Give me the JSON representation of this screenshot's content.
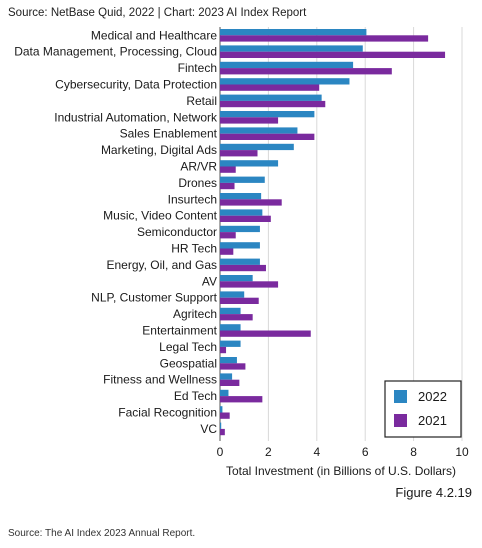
{
  "header": {
    "source_line": "Source: NetBase Quid, 2022 | Chart: 2023 AI Index Report"
  },
  "figure_label": "Figure 4.2.19",
  "footer": {
    "source": "Source: The AI Index 2023 Annual Report."
  },
  "colors": {
    "series_2022": "#2b86c2",
    "series_2021": "#7a2a9e",
    "grid": "#d9d9d9",
    "axis": "#555555"
  },
  "chart_data": {
    "type": "bar",
    "orientation": "horizontal",
    "xlabel": "Total Investment (in Billions of U.S. Dollars)",
    "ylabel": "",
    "xlim": [
      0,
      10
    ],
    "xticks": [
      0,
      2,
      4,
      6,
      8,
      10
    ],
    "grid": true,
    "legend_position": "bottom-right",
    "categories": [
      "Medical and Healthcare",
      "Data Management, Processing, Cloud",
      "Fintech",
      "Cybersecurity, Data Protection",
      "Retail",
      "Industrial Automation, Network",
      "Sales Enablement",
      "Marketing, Digital Ads",
      "AR/VR",
      "Drones",
      "Insurtech",
      "Music, Video Content",
      "Semiconductor",
      "HR Tech",
      "Energy, Oil, and Gas",
      "AV",
      "NLP, Customer Support",
      "Agritech",
      "Entertainment",
      "Legal Tech",
      "Geospatial",
      "Fitness and Wellness",
      "Ed Tech",
      "Facial Recognition",
      "VC"
    ],
    "series": [
      {
        "name": "2022",
        "values": [
          6.05,
          5.9,
          5.5,
          5.35,
          4.2,
          3.9,
          3.2,
          3.05,
          2.4,
          1.85,
          1.7,
          1.75,
          1.65,
          1.65,
          1.65,
          1.35,
          1.0,
          0.85,
          0.85,
          0.85,
          0.7,
          0.5,
          0.35,
          0.1,
          0.05
        ]
      },
      {
        "name": "2021",
        "values": [
          8.6,
          9.3,
          7.1,
          4.1,
          4.35,
          2.4,
          3.9,
          1.55,
          0.65,
          0.6,
          2.55,
          2.1,
          0.65,
          0.55,
          1.9,
          2.4,
          1.6,
          1.35,
          3.75,
          0.25,
          1.05,
          0.8,
          1.75,
          0.4,
          0.2
        ]
      }
    ]
  }
}
